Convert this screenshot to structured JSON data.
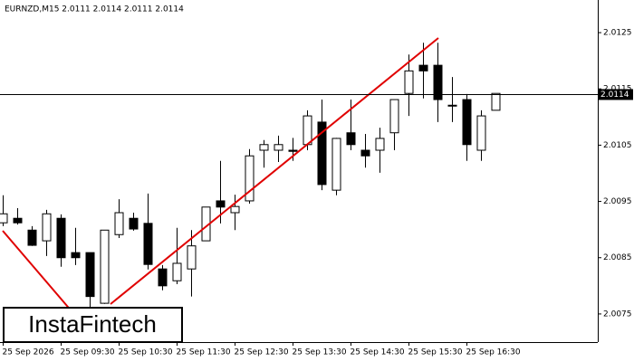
{
  "chart_data": {
    "type": "candlestick",
    "title": "EURNZD,M15  2.0111 2.0114 2.0111 2.0114",
    "watermark": "InstaFintech",
    "x": [
      "25 Sep 2026",
      null,
      null,
      null,
      "25 Sep 09:30",
      null,
      null,
      null,
      "25 Sep 10:30",
      null,
      null,
      null,
      "25 Sep 11:30",
      null,
      null,
      null,
      "25 Sep 12:30",
      null,
      null,
      null,
      "25 Sep 13:30",
      null,
      null,
      null,
      "25 Sep 14:30",
      null,
      null,
      null,
      "25 Sep 15:30",
      null,
      null,
      null,
      "25 Sep 16:30",
      null,
      null
    ],
    "open": [
      2.00912,
      2.0092,
      2.00899,
      2.0088,
      2.0092,
      2.00859,
      2.00859,
      2.00769,
      2.00891,
      2.0092,
      2.00911,
      2.0083,
      2.00809,
      2.0083,
      2.0088,
      2.00951,
      2.0093,
      2.00951,
      2.01041,
      2.01041,
      2.01041,
      2.01051,
      2.01091,
      2.0097,
      2.01072,
      2.01041,
      2.01041,
      2.01072,
      2.01142,
      2.01192,
      2.01192,
      2.01121,
      2.01131,
      2.01041,
      2.01112
    ],
    "high": [
      2.00961,
      2.00938,
      2.00906,
      2.00935,
      2.00927,
      2.00903,
      2.00859,
      2.00899,
      2.00954,
      2.0093,
      2.00964,
      2.00837,
      2.00903,
      2.00899,
      2.0094,
      2.01022,
      2.00962,
      2.01043,
      2.01059,
      2.01067,
      2.01063,
      2.01112,
      2.01131,
      2.01063,
      2.01131,
      2.0107,
      2.01081,
      2.01131,
      2.01211,
      2.01232,
      2.01232,
      2.01171,
      2.01141,
      2.01112,
      2.01142
    ],
    "low": [
      2.00906,
      2.00909,
      2.00871,
      2.00853,
      2.00834,
      2.00837,
      2.00761,
      2.00768,
      2.00885,
      2.00898,
      2.00829,
      2.00792,
      2.00803,
      2.00781,
      2.0088,
      2.00911,
      2.00899,
      2.00946,
      2.0101,
      2.0102,
      2.01022,
      2.01041,
      2.0097,
      2.00961,
      2.01041,
      2.0101,
      2.01001,
      2.01041,
      2.01102,
      2.01133,
      2.01091,
      2.01091,
      2.01022,
      2.01022,
      2.01112
    ],
    "close": [
      2.00928,
      2.00912,
      2.00872,
      2.00928,
      2.0085,
      2.0085,
      2.00781,
      2.00899,
      2.0093,
      2.00901,
      2.00838,
      2.008,
      2.0084,
      2.00871,
      2.0094,
      2.0094,
      2.00941,
      2.01031,
      2.01051,
      2.01051,
      2.01039,
      2.01102,
      2.0098,
      2.01062,
      2.01051,
      2.01031,
      2.01062,
      2.01131,
      2.01182,
      2.01182,
      2.01131,
      2.0112,
      2.01051,
      2.01102,
      2.01142
    ],
    "up_color": "#ffffff",
    "down_color": "#000000",
    "current_price": 2.0114,
    "ylim": [
      2.007,
      2.01308
    ],
    "yticks": [
      2.0075,
      2.0085,
      2.0095,
      2.0105,
      2.0115,
      2.0125
    ]
  }
}
